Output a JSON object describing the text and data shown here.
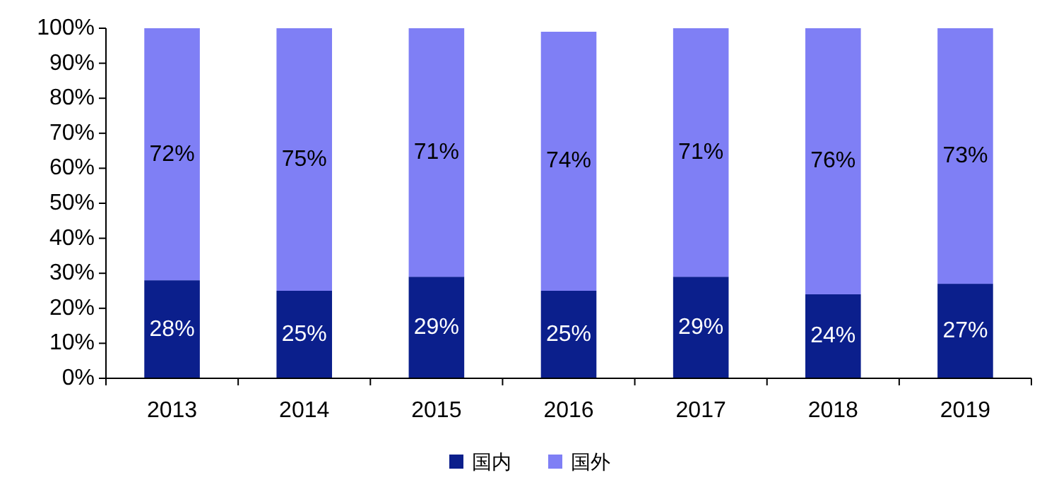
{
  "chart_data": {
    "type": "bar",
    "stacked": true,
    "categories": [
      "2013",
      "2014",
      "2015",
      "2016",
      "2017",
      "2018",
      "2019"
    ],
    "series": [
      {
        "name": "国内",
        "color": "#0b1f8c",
        "values": [
          28,
          25,
          29,
          25,
          29,
          24,
          27
        ],
        "value_labels": [
          "28%",
          "25%",
          "29%",
          "25%",
          "29%",
          "24%",
          "27%"
        ]
      },
      {
        "name": "国外",
        "color": "#7f7ff5",
        "values": [
          72,
          75,
          71,
          74,
          71,
          76,
          73
        ],
        "value_labels": [
          "72%",
          "75%",
          "71%",
          "74%",
          "71%",
          "76%",
          "73%"
        ]
      }
    ],
    "ylim": [
      0,
      100
    ],
    "yticks": [
      {
        "value": 0,
        "label": "0%"
      },
      {
        "value": 10,
        "label": "10%"
      },
      {
        "value": 20,
        "label": "20%"
      },
      {
        "value": 30,
        "label": "30%"
      },
      {
        "value": 40,
        "label": "40%"
      },
      {
        "value": 50,
        "label": "50%"
      },
      {
        "value": 60,
        "label": "60%"
      },
      {
        "value": 70,
        "label": "70%"
      },
      {
        "value": 80,
        "label": "80%"
      },
      {
        "value": 90,
        "label": "90%"
      },
      {
        "value": 100,
        "label": "100%"
      }
    ],
    "grid": false,
    "legend": "bottom"
  }
}
